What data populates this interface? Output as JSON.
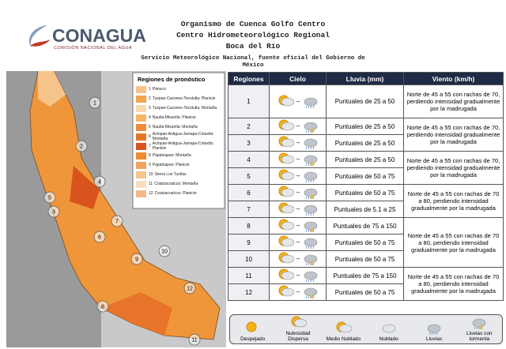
{
  "header": {
    "logo": "CONAGUA",
    "logo_subtitle": "COMISIÓN NACIONAL DEL AGUA",
    "title_lines": [
      "Organismo de Cuenca Golfo Centro",
      "Centro Hidrometeorológico Regional",
      "Boca del Río"
    ],
    "service": "Servicio Meteorológico Nacional, fuente oficial del Gobierno de México"
  },
  "map": {
    "legend_title": "Regiones de pronóstico",
    "legend": [
      {
        "number": "1",
        "name": "Pánuco",
        "color": "#f6c48a"
      },
      {
        "number": "2",
        "name": "Tuxpan-Cazones-Tecolutla: Planicie",
        "color": "#f3a54a"
      },
      {
        "number": "3",
        "name": "Tuxpan-Cazones-Tecolutla: Montaña",
        "color": "#f7d9b0"
      },
      {
        "number": "4",
        "name": "Nautla-Misantla: Planicie",
        "color": "#f5b66a"
      },
      {
        "number": "5",
        "name": "Nautla-Misantla: Montaña",
        "color": "#ef8a3a"
      },
      {
        "number": "6",
        "name": "Actopan-Antigua-Jamapa-Cotaxtla: Montaña",
        "color": "#e8742a"
      },
      {
        "number": "7",
        "name": "Actopan-Antigua-Jamapa-Cotaxtla: Planicie",
        "color": "#d9531e"
      },
      {
        "number": "8",
        "name": "Papaloapan: Montaña",
        "color": "#f08a2c"
      },
      {
        "number": "9",
        "name": "Papaloapan: Planicie",
        "color": "#f0a35c"
      },
      {
        "number": "10",
        "name": "Sierra Los Tuxtlas",
        "color": "#f6c58e"
      },
      {
        "number": "11",
        "name": "Coatzacoalcos: Montaña",
        "color": "#f9dcc0"
      },
      {
        "number": "12",
        "name": "Coatzacoalcos: Planicie",
        "color": "#f4b98a"
      }
    ]
  },
  "table": {
    "headers": [
      "Regiones",
      "Cielo",
      "Lluvia (mm)",
      "Viento (km/h)"
    ],
    "rows": [
      {
        "region": "1",
        "rain": "Puntuales de 25 a 50",
        "wind": "Norte de 45 a 55 con rachas de 70, perdiendo intensidad gradualmente por la madrugada"
      },
      {
        "region": "2",
        "rain": "Puntuales de 25 a 50",
        "wind": "Norte de 45 a 55 con rachas de 70, perdiendo intensidad gradualmente por la madrugada"
      },
      {
        "region": "3",
        "rain": "Puntuales de 25 a 50"
      },
      {
        "region": "4",
        "rain": "Puntuales de 25 a 50",
        "wind": "Norte de 45 a 55 con rachas de 70, perdiendo intensidad gradualmente por la madrugada"
      },
      {
        "region": "5",
        "rain": "Puntuales de 50 a 75"
      },
      {
        "region": "6",
        "rain": "Puntuales de 50 a 75",
        "wind": "Norte de 45 a 55 con rachas de 70 a 80, perdiendo intensidad gradualmente por la madrugada"
      },
      {
        "region": "7",
        "rain": "Puntuales de 5.1 a 25"
      },
      {
        "region": "8",
        "rain": "Puntuales de 75 a 150",
        "wind": "Norte de 45 a 55 con rachas de 70 a 80, perdiendo intensidad gradualmente por la madrugada"
      },
      {
        "region": "9",
        "rain": "Puntuales de 50 a 75"
      },
      {
        "region": "10",
        "rain": "Puntuales de 50 a 75"
      },
      {
        "region": "11",
        "rain": "Puntuales de 75 a 150",
        "wind": "Norte de 45 a 55 con rachas de 70 a 80, perdiendo intensidad gradualmente por la madrugada"
      },
      {
        "region": "12",
        "rain": "Puntuales de 50 a 75"
      }
    ]
  },
  "sky_legend": [
    "Despejado",
    "Nubosidad Dispersa",
    "Medio Nublado",
    "Nublado",
    "Lluvias",
    "Lluvias con tormenta"
  ]
}
